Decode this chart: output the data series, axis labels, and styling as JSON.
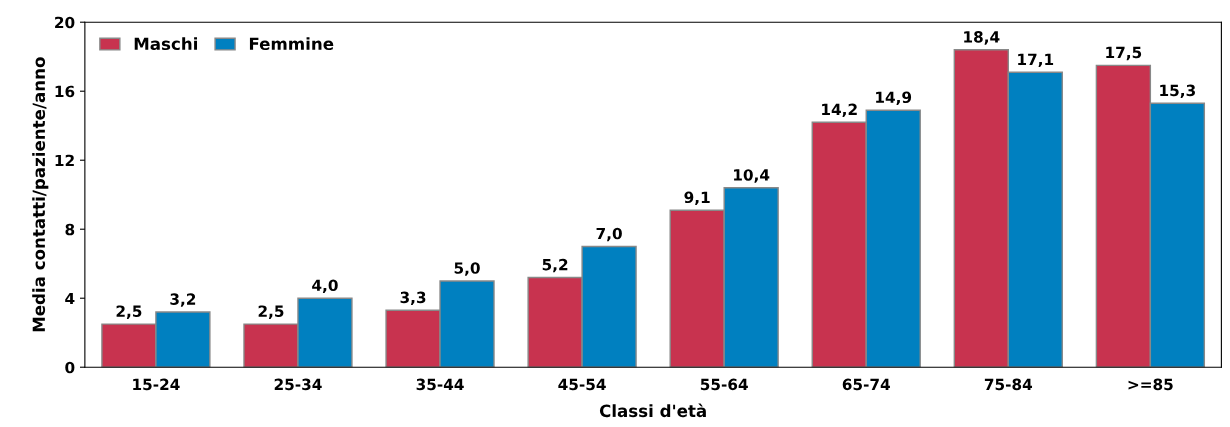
{
  "chart_data": {
    "type": "bar",
    "xlabel": "Classi d'età",
    "ylabel": "Media contatti/paziente/anno",
    "categories": [
      "15-24",
      "25-34",
      "35-44",
      "45-54",
      "55-64",
      "65-74",
      "75-84",
      ">=85"
    ],
    "series": [
      {
        "name": "Maschi",
        "color": "#c8334f",
        "values": [
          2.5,
          2.5,
          3.3,
          5.2,
          9.1,
          14.2,
          18.4,
          17.5
        ],
        "value_labels": [
          "2,5",
          "2,5",
          "3,3",
          "5,2",
          "9,1",
          "14,2",
          "18,4",
          "17,5"
        ]
      },
      {
        "name": "Femmine",
        "color": "#0080c0",
        "values": [
          3.2,
          4.0,
          5.0,
          7.0,
          10.4,
          14.9,
          17.1,
          15.3
        ],
        "value_labels": [
          "3,2",
          "4,0",
          "5,0",
          "7,0",
          "10,4",
          "14,9",
          "17,1",
          "15,3"
        ]
      }
    ],
    "ylim": [
      0,
      20
    ],
    "yticks": [
      0,
      4,
      8,
      12,
      16,
      20
    ],
    "grid": false,
    "legend": "top left"
  }
}
